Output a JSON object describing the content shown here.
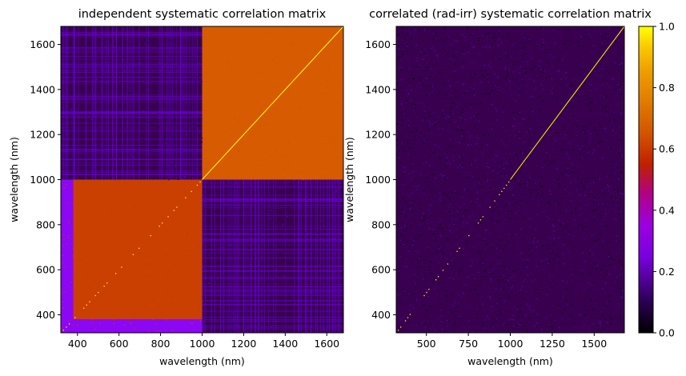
{
  "chart_data": [
    {
      "type": "heatmap",
      "title": "independent systematic correlation matrix",
      "xlabel": "wavelength (nm)",
      "ylabel": "wavelength (nm)",
      "xlim": [
        320,
        1680
      ],
      "ylim": [
        320,
        1680
      ],
      "x_ticks": [
        400,
        600,
        800,
        1000,
        1200,
        1400,
        1600
      ],
      "y_ticks": [
        400,
        600,
        800,
        1000,
        1200,
        1400,
        1600
      ],
      "colormap": "gnuplot",
      "blocks": [
        {
          "x": [
            320,
            1000
          ],
          "y": [
            320,
            1000
          ],
          "correlation": 0.63
        },
        {
          "x": [
            1000,
            1680
          ],
          "y": [
            1000,
            1680
          ],
          "correlation": 0.71
        },
        {
          "x": [
            1000,
            1680
          ],
          "y": [
            320,
            1000
          ],
          "correlation": 0.05
        },
        {
          "x": [
            320,
            1000
          ],
          "y": [
            1000,
            1680
          ],
          "correlation": 0.05
        }
      ],
      "low_correlation_edge": {
        "below_nm": 380,
        "correlation": 0.3
      },
      "diagonal": 1.0
    },
    {
      "type": "heatmap",
      "title": "correlated (rad-irr) systematic correlation matrix",
      "xlabel": "wavelength (nm)",
      "ylabel": "wavelength (nm)",
      "xlim": [
        320,
        1680
      ],
      "ylim": [
        320,
        1680
      ],
      "x_ticks": [
        500,
        750,
        1000,
        1250,
        1500
      ],
      "y_ticks": [
        400,
        600,
        800,
        1000,
        1200,
        1400,
        1600
      ],
      "colormap": "gnuplot",
      "background_correlation": 0.05,
      "diagonal": 1.0
    }
  ],
  "colorbar": {
    "vmin": 0.0,
    "vmax": 1.0,
    "ticks": [
      "0.0",
      "0.2",
      "0.4",
      "0.6",
      "0.8",
      "1.0"
    ],
    "colormap": "gnuplot"
  }
}
